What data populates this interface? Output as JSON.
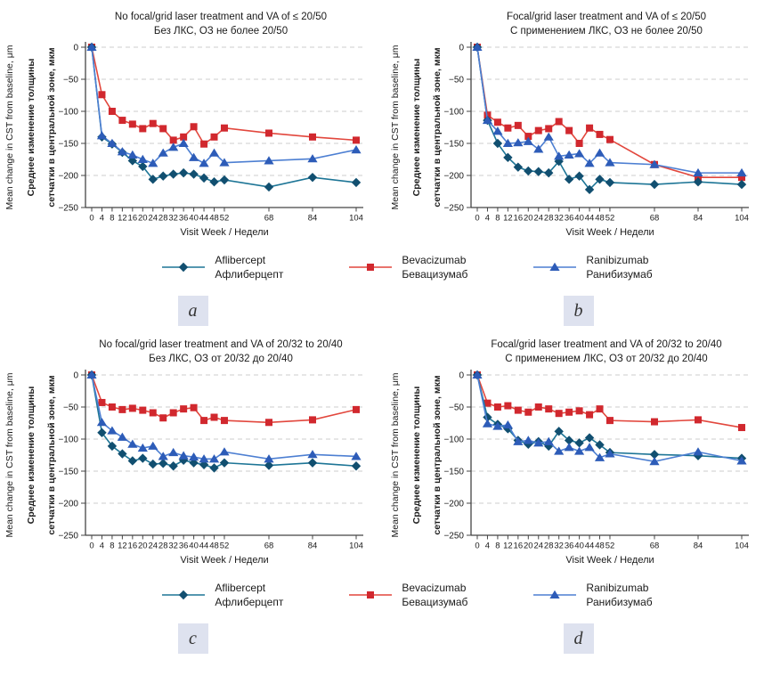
{
  "figure": {
    "xlabel": "Visit Week / Недели",
    "ylabel_en": "Mean change in CST from baseline, μm",
    "ylabel_ru_line1": "Среднее изменение толщины",
    "ylabel_ru_line2": "сетчатки в центральной зоне, мкм",
    "ytick_values": [
      0,
      -50,
      -100,
      -150,
      -200,
      -250
    ],
    "ytick_labels": [
      "0",
      "−50",
      "−100",
      "−150",
      "−200",
      "−250"
    ],
    "xtick_values": [
      0,
      4,
      8,
      12,
      16,
      20,
      24,
      28,
      32,
      36,
      40,
      44,
      48,
      52,
      68,
      84,
      104
    ]
  },
  "colors": {
    "aflibercept_line": "#1d7596",
    "aflibercept_marker": "#114f70",
    "bevacizumab_line": "#e2473d",
    "bevacizumab_marker": "#d1282e",
    "ranibizumab_line": "#4d7fd2",
    "ranibizumab_marker": "#2d5cb8",
    "grid": "#cccccc",
    "axis": "#444444",
    "panel_label_bg": "#dee2ef",
    "panel_label_text": "#333333"
  },
  "legend": {
    "items": [
      {
        "key": "aflibercept",
        "marker": "diamond",
        "name_en": "Aflibercept",
        "name_ru": "Афлиберцепт"
      },
      {
        "key": "bevacizumab",
        "marker": "square",
        "name_en": "Bevacizumab",
        "name_ru": "Бевацизумаб"
      },
      {
        "key": "ranibizumab",
        "marker": "triangle",
        "name_en": "Ranibizumab",
        "name_ru": "Ранибизумаб"
      }
    ]
  },
  "chart_data": [
    {
      "type": "line",
      "panel": "a",
      "title_en": "No focal/grid laser treatment and VA of ≤ 20/50",
      "title_ru": "Без ЛКС, ОЗ не более 20/50",
      "xlabel": "Visit Week / Недели",
      "ylabel": "Mean change in CST from baseline, μm",
      "ylim": [
        -250,
        0
      ],
      "x": [
        0,
        4,
        8,
        12,
        16,
        20,
        24,
        28,
        32,
        36,
        40,
        44,
        48,
        52,
        68,
        84,
        104
      ],
      "series": [
        {
          "key": "aflibercept",
          "name": "Aflibercept / Афлиберцепт",
          "values": [
            0,
            -140,
            -151,
            -164,
            -177,
            -186,
            -206,
            -201,
            -198,
            -196,
            -198,
            -204,
            -210,
            -207,
            -218,
            -203,
            -211
          ]
        },
        {
          "key": "bevacizumab",
          "name": "Bevacizumab / Бевацизумаб",
          "values": [
            0,
            -74,
            -100,
            -114,
            -120,
            -127,
            -119,
            -127,
            -145,
            -140,
            -124,
            -151,
            -140,
            -126,
            -134,
            -140,
            -145
          ]
        },
        {
          "key": "ranibizumab",
          "name": "Ranibizumab / Ранибизумаб",
          "values": [
            0,
            -138,
            -150,
            -163,
            -168,
            -175,
            -181,
            -165,
            -156,
            -150,
            -172,
            -181,
            -165,
            -180,
            -177,
            -174,
            -160
          ]
        }
      ]
    },
    {
      "type": "line",
      "panel": "b",
      "title_en": "Focal/grid laser treatment and VA of ≤ 20/50",
      "title_ru": "С применением ЛКС, ОЗ не более 20/50",
      "xlabel": "Visit Week / Недели",
      "ylabel": "Mean change in CST from baseline, μm",
      "ylim": [
        -250,
        0
      ],
      "x": [
        0,
        4,
        8,
        12,
        16,
        20,
        24,
        28,
        32,
        36,
        40,
        44,
        48,
        52,
        68,
        84,
        104
      ],
      "series": [
        {
          "key": "aflibercept",
          "name": "Aflibercept / Афлиберцепт",
          "values": [
            0,
            -114,
            -150,
            -172,
            -187,
            -193,
            -194,
            -196,
            -178,
            -206,
            -201,
            -222,
            -206,
            -211,
            -214,
            -210,
            -214
          ]
        },
        {
          "key": "bevacizumab",
          "name": "Bevacizumab / Бевацизумаб",
          "values": [
            0,
            -106,
            -117,
            -126,
            -122,
            -139,
            -130,
            -127,
            -116,
            -130,
            -150,
            -126,
            -136,
            -144,
            -183,
            -203,
            -203
          ]
        },
        {
          "key": "ranibizumab",
          "name": "Ranibizumab / Ранибизумаб",
          "values": [
            0,
            -114,
            -131,
            -150,
            -149,
            -147,
            -159,
            -140,
            -170,
            -168,
            -166,
            -181,
            -165,
            -180,
            -183,
            -196,
            -196
          ]
        }
      ]
    },
    {
      "type": "line",
      "panel": "c",
      "title_en": "No focal/grid laser treatment and VA of 20/32 to 20/40",
      "title_ru": "Без ЛКС, ОЗ от 20/32 до 20/40",
      "xlabel": "Visit Week / Недели",
      "ylabel": "Mean change in CST from baseline, μm",
      "ylim": [
        -250,
        0
      ],
      "x": [
        0,
        4,
        8,
        12,
        16,
        20,
        24,
        28,
        32,
        36,
        40,
        44,
        48,
        52,
        68,
        84,
        104
      ],
      "series": [
        {
          "key": "aflibercept",
          "name": "Aflibercept / Афлиберцепт",
          "values": [
            0,
            -90,
            -111,
            -123,
            -134,
            -130,
            -139,
            -138,
            -142,
            -133,
            -137,
            -140,
            -145,
            -137,
            -141,
            -137,
            -142
          ]
        },
        {
          "key": "bevacizumab",
          "name": "Bevacizumab / Бевацизумаб",
          "values": [
            0,
            -43,
            -50,
            -54,
            -52,
            -55,
            -59,
            -67,
            -59,
            -53,
            -51,
            -71,
            -66,
            -71,
            -74,
            -70,
            -54
          ]
        },
        {
          "key": "ranibizumab",
          "name": "Ranibizumab / Ранибизумаб",
          "values": [
            0,
            -74,
            -87,
            -97,
            -108,
            -114,
            -111,
            -127,
            -121,
            -126,
            -128,
            -131,
            -131,
            -120,
            -131,
            -124,
            -127
          ]
        }
      ]
    },
    {
      "type": "line",
      "panel": "d",
      "title_en": "Focal/grid laser treatment and VA of 20/32 to 20/40",
      "title_ru": "С применением ЛКС, ОЗ от 20/32 до 20/40",
      "xlabel": "Visit Week / Недели",
      "ylabel": "Mean change in CST from baseline, μm",
      "ylim": [
        -250,
        0
      ],
      "x": [
        0,
        4,
        8,
        12,
        16,
        20,
        24,
        28,
        32,
        36,
        40,
        44,
        48,
        52,
        68,
        84,
        104
      ],
      "series": [
        {
          "key": "aflibercept",
          "name": "Aflibercept / Афлиберцепт",
          "values": [
            0,
            -66,
            -77,
            -84,
            -102,
            -108,
            -104,
            -111,
            -88,
            -102,
            -106,
            -98,
            -109,
            -121,
            -124,
            -126,
            -130
          ]
        },
        {
          "key": "bevacizumab",
          "name": "Bevacizumab / Бевацизумаб",
          "values": [
            0,
            -44,
            -50,
            -48,
            -55,
            -58,
            -50,
            -53,
            -60,
            -58,
            -56,
            -62,
            -53,
            -71,
            -73,
            -70,
            -82
          ]
        },
        {
          "key": "ranibizumab",
          "name": "Ranibizumab / Ранибизумаб",
          "values": [
            0,
            -76,
            -80,
            -78,
            -104,
            -102,
            -106,
            -104,
            -119,
            -113,
            -119,
            -113,
            -129,
            -123,
            -135,
            -120,
            -134
          ]
        }
      ]
    }
  ]
}
